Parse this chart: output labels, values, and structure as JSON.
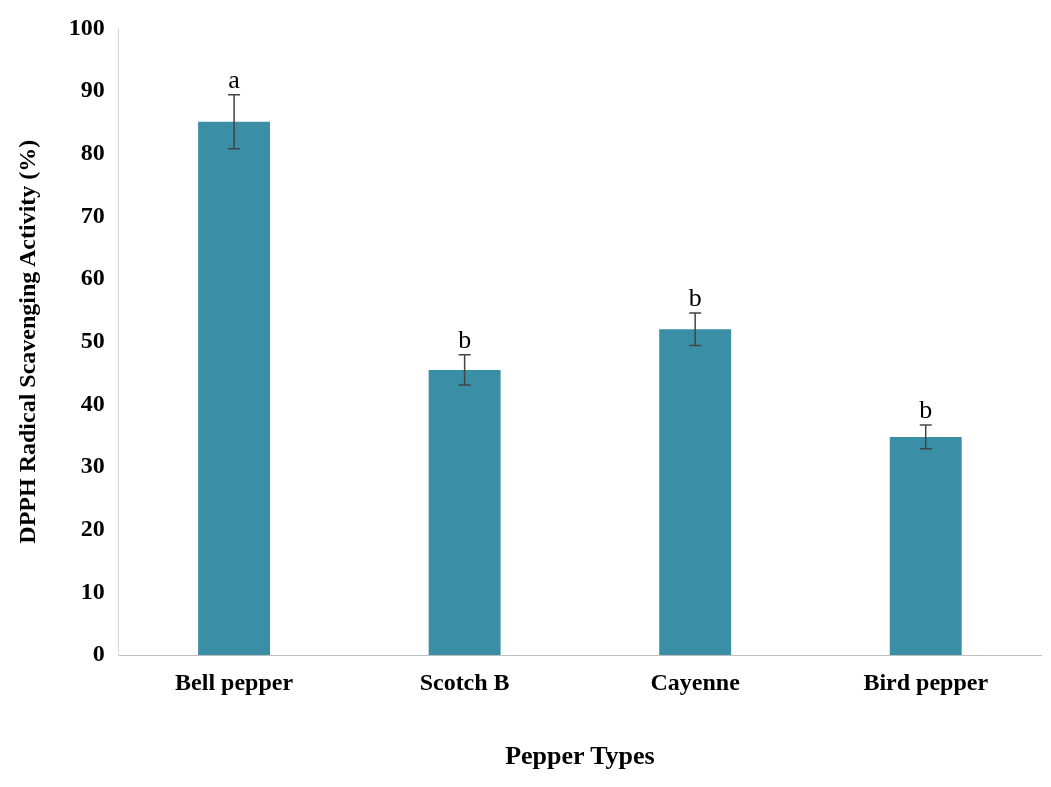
{
  "chart_data": {
    "type": "bar",
    "xlabel": "Pepper Types",
    "ylabel": "DPPH Radical Scavenging Activity (%)",
    "categories": [
      "Bell pepper",
      "Scotch B",
      "Cayenne",
      "Bird pepper"
    ],
    "values": [
      85.1,
      45.5,
      52.0,
      34.8
    ],
    "errors": [
      4.3,
      2.4,
      2.6,
      1.9
    ],
    "color": "#3a8fa6",
    "ylim": [
      0,
      100
    ],
    "yticks": [
      0,
      10,
      20,
      30,
      40,
      50,
      60,
      70,
      80,
      90,
      100
    ],
    "grid": false,
    "legend": false,
    "annotations": [
      {
        "text": "a",
        "x": "Bell pepper",
        "y": 89.4
      },
      {
        "text": "b",
        "x": "Scotch B",
        "y": 47.9
      },
      {
        "text": "b",
        "x": "Cayenne",
        "y": 54.6
      },
      {
        "text": "b",
        "x": "Bird pepper",
        "y": 36.7
      }
    ]
  }
}
